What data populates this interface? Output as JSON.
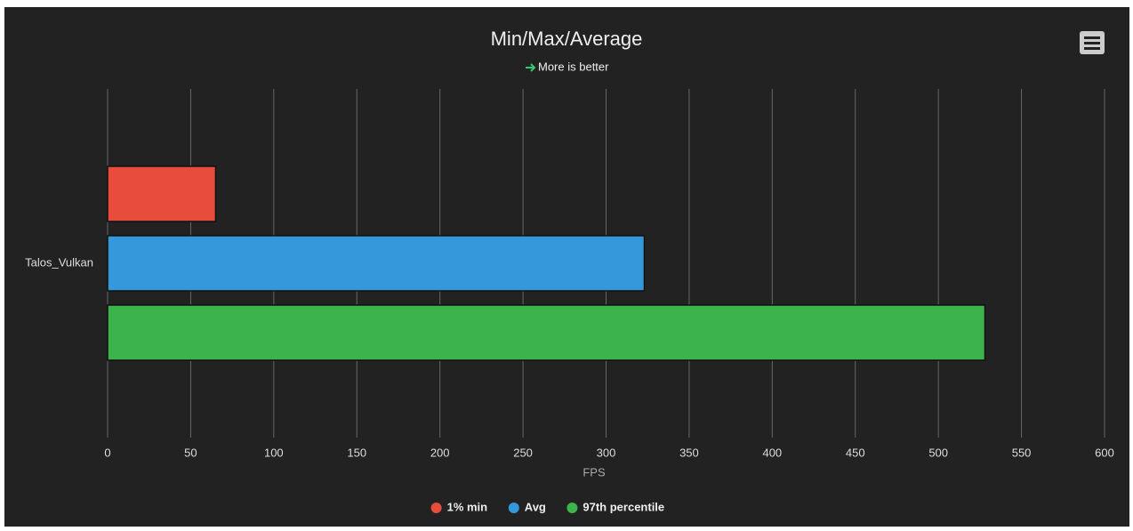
{
  "chart_data": {
    "type": "bar",
    "orientation": "horizontal",
    "title": "Min/Max/Average",
    "subtitle": "More is better",
    "xlabel": "FPS",
    "categories": [
      "Talos_Vulkan"
    ],
    "series": [
      {
        "name": "1% min",
        "color": "#e74c3c",
        "values": [
          65
        ]
      },
      {
        "name": "Avg",
        "color": "#3498db",
        "values": [
          323
        ]
      },
      {
        "name": "97th percentile",
        "color": "#3cb44b",
        "values": [
          528
        ]
      }
    ],
    "xlim": [
      0,
      600
    ],
    "xticks": [
      0,
      50,
      100,
      150,
      200,
      250,
      300,
      350,
      400,
      450,
      500,
      550,
      600
    ],
    "grid": true,
    "legend": "bottom"
  }
}
